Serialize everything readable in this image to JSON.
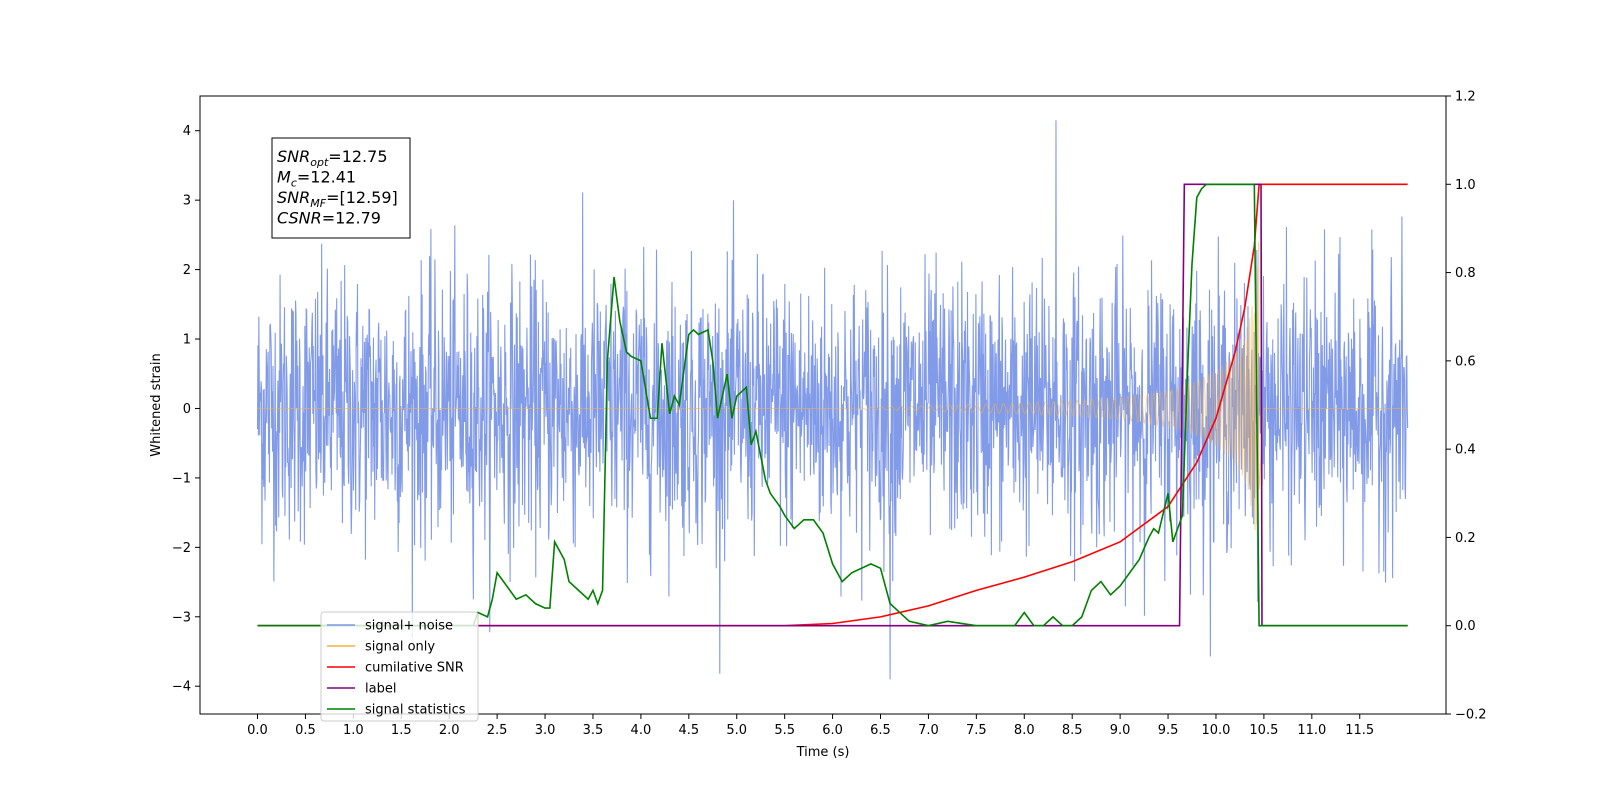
{
  "chart_data": {
    "type": "line",
    "xlabel": "Time (s)",
    "ylabel": "Whitened strain",
    "xlim": [
      -0.6,
      12.4
    ],
    "ylim": [
      -4.4,
      4.5
    ],
    "y2lim": [
      -0.2,
      1.2
    ],
    "x_ticks": [
      0.0,
      0.5,
      1.0,
      1.5,
      2.0,
      2.5,
      3.0,
      3.5,
      4.0,
      4.5,
      5.0,
      5.5,
      6.0,
      6.5,
      7.0,
      7.5,
      8.0,
      8.5,
      9.0,
      9.5,
      10.0,
      10.5,
      11.0,
      11.5
    ],
    "x_tick_labels": [
      "0.0",
      "0.5",
      "1.0",
      "1.5",
      "2.0",
      "2.5",
      "3.0",
      "3.5",
      "4.0",
      "4.5",
      "5.0",
      "5.5",
      "6.0",
      "6.5",
      "7.0",
      "7.5",
      "8.0",
      "8.5",
      "9.0",
      "9.5",
      "10.0",
      "10.5",
      "11.0",
      "11.5"
    ],
    "y_ticks": [
      -4,
      -3,
      -2,
      -1,
      0,
      1,
      2,
      3,
      4
    ],
    "y_tick_labels": [
      "−4",
      "−3",
      "−2",
      "−1",
      "0",
      "1",
      "2",
      "3",
      "4"
    ],
    "y2_ticks": [
      -0.2,
      0.0,
      0.2,
      0.4,
      0.6,
      0.8,
      1.0,
      1.2
    ],
    "y2_tick_labels": [
      "−0.2",
      "0.0",
      "0.2",
      "0.4",
      "0.6",
      "0.8",
      "1.0",
      "1.2"
    ],
    "grid": false,
    "legend_position": "lower-left",
    "annotation": {
      "lines": [
        {
          "base": "SNR",
          "sub": "opt",
          "value": "=12.75"
        },
        {
          "base": "M",
          "sub": "c",
          "value": "=12.41"
        },
        {
          "base": "SNR",
          "sub": "MF",
          "value": "=[12.59]"
        },
        {
          "base": "CSNR",
          "sub": "",
          "value": "=12.79"
        }
      ]
    },
    "series": [
      {
        "name": "signal+ noise",
        "axis": "left",
        "color": "#7b96e8",
        "kind": "noise-band",
        "x_range": [
          0.0,
          12.0
        ],
        "typical_amplitude": 1.4,
        "max": 4.15,
        "min": -3.9
      },
      {
        "name": "signal only",
        "axis": "left",
        "color": "#f5b041",
        "kind": "chirp",
        "x_range": [
          0.0,
          12.0
        ],
        "merger_time": 10.45,
        "envelope": {
          "x": [
            0.0,
            6.0,
            7.0,
            8.0,
            8.5,
            9.0,
            9.5,
            9.8,
            10.0,
            10.2,
            10.3,
            10.4,
            10.45,
            10.5,
            12.0
          ],
          "amplitude": [
            0.0,
            0.0,
            0.04,
            0.08,
            0.11,
            0.16,
            0.26,
            0.4,
            0.55,
            0.8,
            1.05,
            1.6,
            2.6,
            0.0,
            0.0
          ]
        }
      },
      {
        "name": "cumilative SNR",
        "axis": "right",
        "color": "#ff0000",
        "x": [
          0.0,
          5.5,
          6.0,
          6.5,
          7.0,
          7.5,
          8.0,
          8.5,
          9.0,
          9.5,
          9.8,
          10.0,
          10.2,
          10.3,
          10.4,
          10.45,
          10.5,
          12.0
        ],
        "values": [
          0.0,
          0.0,
          0.005,
          0.02,
          0.045,
          0.08,
          0.11,
          0.145,
          0.19,
          0.27,
          0.37,
          0.47,
          0.62,
          0.72,
          0.86,
          1.0,
          1.0,
          1.0
        ]
      },
      {
        "name": "label",
        "axis": "right",
        "color": "#800080",
        "x": [
          0.0,
          9.62,
          9.67,
          10.47,
          10.48,
          12.0
        ],
        "values": [
          0.0,
          0.0,
          1.0,
          1.0,
          0.0,
          0.0
        ]
      },
      {
        "name": "signal statistics",
        "axis": "right",
        "color": "#008000",
        "x": [
          0.0,
          2.25,
          2.3,
          2.4,
          2.45,
          2.5,
          2.7,
          2.8,
          2.9,
          3.0,
          3.05,
          3.1,
          3.2,
          3.25,
          3.35,
          3.45,
          3.5,
          3.55,
          3.6,
          3.65,
          3.72,
          3.78,
          3.85,
          3.9,
          4.0,
          4.1,
          4.17,
          4.22,
          4.3,
          4.35,
          4.4,
          4.5,
          4.55,
          4.6,
          4.7,
          4.75,
          4.8,
          4.9,
          4.95,
          5.0,
          5.1,
          5.15,
          5.2,
          5.3,
          5.35,
          5.45,
          5.5,
          5.6,
          5.7,
          5.8,
          5.9,
          6.0,
          6.1,
          6.2,
          6.4,
          6.5,
          6.6,
          6.7,
          6.8,
          7.0,
          7.2,
          7.5,
          7.9,
          8.0,
          8.1,
          8.2,
          8.3,
          8.4,
          8.5,
          8.6,
          8.7,
          8.8,
          8.9,
          9.0,
          9.1,
          9.2,
          9.3,
          9.35,
          9.4,
          9.5,
          9.55,
          9.6,
          9.65,
          9.7,
          9.75,
          9.8,
          9.85,
          9.9,
          10.0,
          10.2,
          10.4,
          10.45,
          10.5,
          12.0
        ],
        "values": [
          0.0,
          0.0,
          0.03,
          0.02,
          0.06,
          0.12,
          0.06,
          0.07,
          0.05,
          0.04,
          0.04,
          0.19,
          0.15,
          0.1,
          0.08,
          0.06,
          0.08,
          0.05,
          0.08,
          0.6,
          0.79,
          0.69,
          0.62,
          0.61,
          0.6,
          0.47,
          0.47,
          0.64,
          0.48,
          0.52,
          0.5,
          0.66,
          0.67,
          0.66,
          0.67,
          0.6,
          0.47,
          0.57,
          0.47,
          0.52,
          0.54,
          0.41,
          0.44,
          0.33,
          0.3,
          0.27,
          0.25,
          0.22,
          0.24,
          0.24,
          0.21,
          0.14,
          0.1,
          0.12,
          0.14,
          0.13,
          0.05,
          0.03,
          0.01,
          0.0,
          0.01,
          0.0,
          0.0,
          0.03,
          0.0,
          0.0,
          0.02,
          0.0,
          0.0,
          0.02,
          0.08,
          0.1,
          0.07,
          0.09,
          0.12,
          0.15,
          0.2,
          0.22,
          0.21,
          0.3,
          0.19,
          0.22,
          0.25,
          0.56,
          0.82,
          0.97,
          0.99,
          1.0,
          1.0,
          1.0,
          1.0,
          0.0,
          0.0,
          0.0
        ]
      }
    ]
  }
}
